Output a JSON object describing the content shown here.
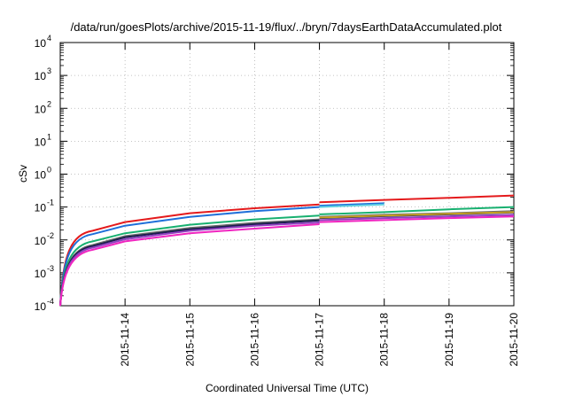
{
  "chart_data": {
    "type": "line",
    "title": "/data/run/goesPlots/archive/2015-11-19/flux/../bryn/7daysEarthDataAccumulated.plot",
    "xlabel": "Coordinated Universal Time (UTC)",
    "ylabel": "cSv",
    "yscale": "log",
    "ylim": [
      0.0001,
      10000
    ],
    "y_ticks": [
      {
        "base": "10",
        "exp": "-4"
      },
      {
        "base": "10",
        "exp": "-3"
      },
      {
        "base": "10",
        "exp": "-2"
      },
      {
        "base": "10",
        "exp": "-1"
      },
      {
        "base": "10",
        "exp": "0"
      },
      {
        "base": "10",
        "exp": "1"
      },
      {
        "base": "10",
        "exp": "2"
      },
      {
        "base": "10",
        "exp": "3"
      },
      {
        "base": "10",
        "exp": "4"
      }
    ],
    "xlim": [
      "2015-11-13T00:00",
      "2015-11-20T00:00"
    ],
    "x_ticks": [
      "2015-11-14",
      "2015-11-15",
      "2015-11-16",
      "2015-11-17",
      "2015-11-18",
      "2015-11-19",
      "2015-11-20"
    ],
    "grid": true,
    "legend": "none",
    "series": [
      {
        "color": "#e41a1c",
        "x": [
          "2015-11-13T00:00",
          "2015-11-13T12:00",
          "2015-11-14T00:00",
          "2015-11-15T00:00",
          "2015-11-16T00:00",
          "2015-11-17T00:00",
          "2015-11-17T00:00",
          "2015-11-18T00:00",
          "2015-11-19T00:00",
          "2015-11-20T00:00"
        ],
        "values": [
          0.0001,
          0.019,
          0.035,
          0.065,
          0.092,
          0.12,
          0.14,
          0.165,
          0.19,
          0.225
        ]
      },
      {
        "color": "#1e6fd9",
        "x": [
          "2015-11-13T00:00",
          "2015-11-13T12:00",
          "2015-11-14T00:00",
          "2015-11-15T00:00",
          "2015-11-16T00:00",
          "2015-11-17T00:00",
          "2015-11-17T00:00",
          "2015-11-18T00:00"
        ],
        "values": [
          0.0001,
          0.015,
          0.027,
          0.05,
          0.075,
          0.1,
          0.11,
          0.13
        ]
      },
      {
        "color": "#5fd0e0",
        "x": [
          "2015-11-17T00:00",
          "2015-11-18T00:00"
        ],
        "values": [
          0.1,
          0.12
        ]
      },
      {
        "color": "#18b070",
        "x": [
          "2015-11-13T00:00",
          "2015-11-13T12:00",
          "2015-11-14T00:00",
          "2015-11-15T00:00",
          "2015-11-16T00:00",
          "2015-11-17T00:00",
          "2015-11-17T00:00",
          "2015-11-18T00:00",
          "2015-11-19T00:00",
          "2015-11-20T00:00"
        ],
        "values": [
          0.0001,
          0.009,
          0.016,
          0.029,
          0.042,
          0.055,
          0.06,
          0.07,
          0.085,
          0.1
        ]
      },
      {
        "color": "#6a6a6a",
        "x": [
          "2015-11-13T00:00",
          "2015-11-13T12:00",
          "2015-11-14T00:00",
          "2015-11-15T00:00",
          "2015-11-16T00:00",
          "2015-11-17T00:00",
          "2015-11-17T00:00",
          "2015-11-18T00:00",
          "2015-11-19T00:00",
          "2015-11-20T00:00"
        ],
        "values": [
          0.0001,
          0.007,
          0.013,
          0.023,
          0.033,
          0.042,
          0.05,
          0.058,
          0.065,
          0.075
        ]
      },
      {
        "color": "#1b1b4f",
        "x": [
          "2015-11-13T00:00",
          "2015-11-13T12:00",
          "2015-11-14T00:00",
          "2015-11-15T00:00",
          "2015-11-16T00:00",
          "2015-11-17T00:00",
          "2015-11-17T00:00",
          "2015-11-18T00:00",
          "2015-11-19T00:00",
          "2015-11-20T00:00"
        ],
        "values": [
          0.0001,
          0.0065,
          0.012,
          0.021,
          0.03,
          0.039,
          0.046,
          0.053,
          0.06,
          0.068
        ]
      },
      {
        "color": "#c8a020",
        "x": [
          "2015-11-17T00:00",
          "2015-11-18T00:00",
          "2015-11-19T00:00",
          "2015-11-20T00:00"
        ],
        "values": [
          0.048,
          0.055,
          0.062,
          0.07
        ]
      },
      {
        "color": "#9040c0",
        "x": [
          "2015-11-13T00:00",
          "2015-11-13T12:00",
          "2015-11-14T00:00",
          "2015-11-15T00:00",
          "2015-11-16T00:00",
          "2015-11-17T00:00",
          "2015-11-17T00:00",
          "2015-11-18T00:00",
          "2015-11-19T00:00",
          "2015-11-20T00:00"
        ],
        "values": [
          0.0001,
          0.0058,
          0.0105,
          0.019,
          0.027,
          0.034,
          0.04,
          0.046,
          0.052,
          0.058
        ]
      },
      {
        "color": "#f025c0",
        "x": [
          "2015-11-13T00:00",
          "2015-11-13T12:00",
          "2015-11-14T00:00",
          "2015-11-15T00:00",
          "2015-11-16T00:00",
          "2015-11-17T00:00",
          "2015-11-17T00:00",
          "2015-11-18T00:00",
          "2015-11-19T00:00",
          "2015-11-20T00:00"
        ],
        "values": [
          0.0001,
          0.005,
          0.009,
          0.016,
          0.022,
          0.03,
          0.035,
          0.04,
          0.046,
          0.052
        ]
      }
    ]
  }
}
